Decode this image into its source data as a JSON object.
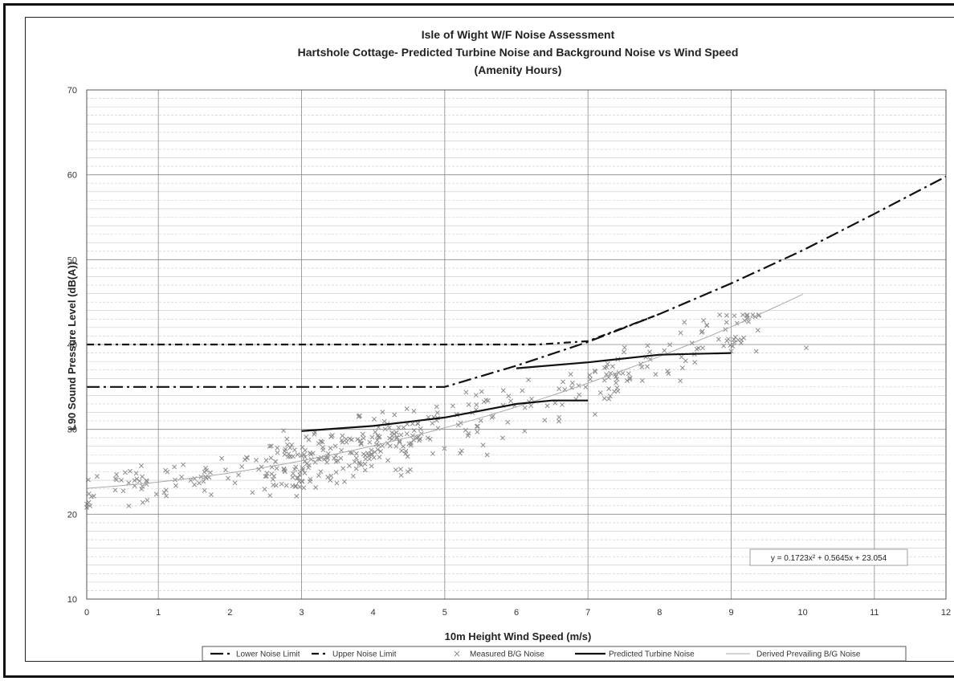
{
  "chart_data": {
    "type": "scatter",
    "title_lines": [
      "Isle of Wight W/F Noise Assessment",
      "Hartshole Cottage- Predicted Turbine Noise and Background Noise vs Wind Speed",
      "(Amenity Hours)"
    ],
    "xlabel": "10m Height Wind Speed (m/s)",
    "ylabel": "L90 Sound Pressure Level (dB(A))",
    "xlim": [
      0,
      12
    ],
    "ylim": [
      10,
      70
    ],
    "x_ticks": [
      "0",
      "1",
      "2",
      "3",
      "4",
      "5",
      "6",
      "7",
      "8",
      "9",
      "10",
      "11",
      "12"
    ],
    "y_ticks": [
      "10",
      "20",
      "30",
      "40",
      "50",
      "60",
      "70"
    ],
    "grid": true,
    "legend_position": "bottom",
    "equation": "y = 0.1723x² + 0.5645x + 23.054",
    "series": [
      {
        "name": "Lower Noise Limit",
        "style": "dash-dot-long",
        "color": "#111111",
        "points": [
          [
            0,
            35
          ],
          [
            5,
            35
          ],
          [
            6,
            37.5
          ],
          [
            7,
            40.3
          ],
          [
            8,
            43.6
          ],
          [
            9,
            47.2
          ],
          [
            10,
            51.1
          ],
          [
            11,
            55.4
          ],
          [
            12,
            59.8
          ]
        ]
      },
      {
        "name": "Upper Noise Limit",
        "style": "dash-dot-short",
        "color": "#111111",
        "points": [
          [
            0,
            40
          ],
          [
            6.3,
            40
          ],
          [
            7,
            40.4
          ],
          [
            8,
            43.6
          ]
        ]
      },
      {
        "name": "Measured B/G Noise",
        "style": "marker-x",
        "color": "#8c8c8c"
      },
      {
        "name": "Predicted Turbine Noise",
        "style": "solid-thick",
        "color": "#111111",
        "segments": [
          [
            [
              3,
              29.8
            ],
            [
              4,
              30.4
            ],
            [
              5,
              31.4
            ],
            [
              6,
              33.0
            ],
            [
              6.5,
              33.4
            ],
            [
              7,
              33.4
            ]
          ],
          [
            [
              6,
              37.2
            ],
            [
              7,
              37.9
            ],
            [
              8,
              38.8
            ],
            [
              9,
              39.0
            ]
          ]
        ]
      },
      {
        "name": "Derived Prevailing B/G Noise",
        "style": "solid-thin",
        "color": "#aaaaaa",
        "fit": {
          "a": 0.1723,
          "b": 0.5645,
          "c": 23.054,
          "x_range": [
            0,
            10
          ]
        }
      }
    ]
  }
}
